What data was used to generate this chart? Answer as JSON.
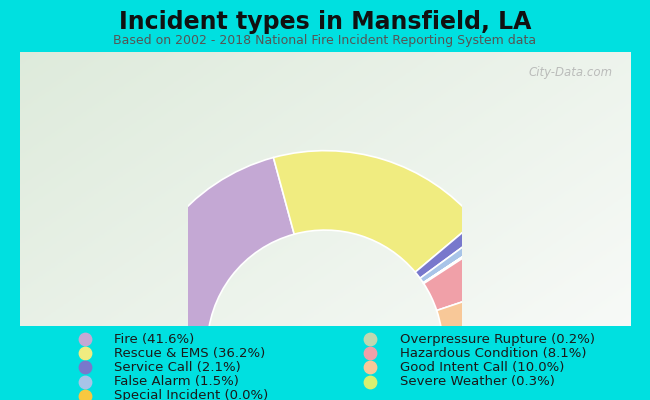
{
  "title": "Incident types in Mansfield, LA",
  "subtitle": "Based on 2002 - 2018 National Fire Incident Reporting System data",
  "background_color": "#00e0e0",
  "watermark": "City-Data.com",
  "segments": [
    {
      "label": "Fire (41.6%)",
      "value": 41.6,
      "color": "#c4a8d4"
    },
    {
      "label": "Rescue & EMS (36.2%)",
      "value": 36.2,
      "color": "#f0ec80"
    },
    {
      "label": "Service Call (2.1%)",
      "value": 2.1,
      "color": "#7878cc"
    },
    {
      "label": "False Alarm (1.5%)",
      "value": 1.5,
      "color": "#a8c4e8"
    },
    {
      "label": "Special Incident (0.0%)",
      "value": 0.05,
      "color": "#f8c840"
    },
    {
      "label": "Overpressure Rupture (0.2%)",
      "value": 0.2,
      "color": "#c0d8b0"
    },
    {
      "label": "Hazardous Condition (8.1%)",
      "value": 8.1,
      "color": "#f0a0a8"
    },
    {
      "label": "Good Intent Call (10.0%)",
      "value": 10.0,
      "color": "#f8c898"
    },
    {
      "label": "Severe Weather (0.3%)",
      "value": 0.3,
      "color": "#d8f070"
    }
  ],
  "title_fontsize": 17,
  "subtitle_fontsize": 9,
  "legend_fontsize": 9.5
}
